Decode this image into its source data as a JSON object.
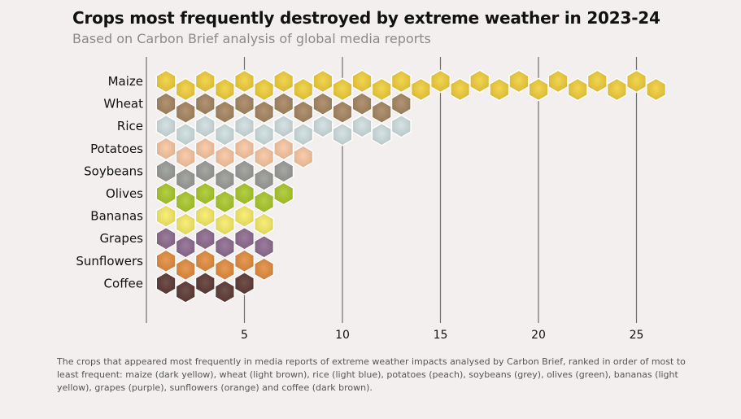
{
  "header": {
    "title": "Crops most frequently destroyed by extreme weather in 2023-24",
    "subtitle": "Based on Carbon Brief analysis of global media reports"
  },
  "caption": "The crops that appeared most frequently in media reports of extreme weather impacts analysed by Carbon Brief, ranked in order of most to least frequent: maize (dark yellow), wheat (light brown), rice (light blue), potatoes (peach), soybeans (grey), olives (green), bananas (light yellow), grapes (purple), sunflowers (orange) and coffee (dark brown).",
  "chart_data": {
    "type": "bar",
    "title": "Crops most frequently destroyed by extreme weather in 2023-24",
    "subtitle": "Based on Carbon Brief analysis of global media reports",
    "xlabel": "",
    "ylabel": "",
    "xlim": [
      0,
      27
    ],
    "xticks": [
      5,
      10,
      15,
      20,
      25
    ],
    "grid": true,
    "categories": [
      "Maize",
      "Wheat",
      "Rice",
      "Potatoes",
      "Soybeans",
      "Olives",
      "Bananas",
      "Grapes",
      "Sunflowers",
      "Coffee"
    ],
    "values": [
      26,
      13,
      13,
      8,
      7,
      7,
      6,
      6,
      6,
      5
    ],
    "colors": [
      "#f2cf3a",
      "#a58560",
      "#cfdfe0",
      "#f9c6a1",
      "#9a9c96",
      "#abc92a",
      "#f8ec66",
      "#8e6a8e",
      "#e38c3d",
      "#5e3934"
    ]
  }
}
